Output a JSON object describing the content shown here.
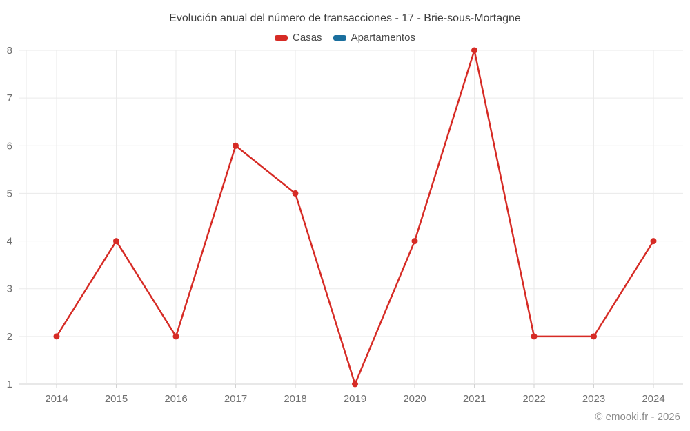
{
  "chart": {
    "title": "Evolución anual del número de transacciones - 17 - Brie-sous-Mortagne",
    "legend": [
      {
        "label": "Casas",
        "color": "#d62b25"
      },
      {
        "label": "Apartamentos",
        "color": "#1a6f9e"
      }
    ]
  },
  "chart_data": {
    "type": "line",
    "title": "Evolución anual del número de transacciones - 17 - Brie-sous-Mortagne",
    "x": [
      2014,
      2015,
      2016,
      2017,
      2018,
      2019,
      2020,
      2021,
      2022,
      2023,
      2024
    ],
    "series": [
      {
        "name": "Casas",
        "color": "#d62b25",
        "values": [
          2,
          4,
          2,
          6,
          5,
          1,
          4,
          8,
          2,
          2,
          4
        ]
      },
      {
        "name": "Apartamentos",
        "color": "#1a6f9e",
        "values": []
      }
    ],
    "xlabel": "",
    "ylabel": "",
    "ylim": [
      1,
      8
    ],
    "yticks": [
      1,
      2,
      3,
      4,
      5,
      6,
      7,
      8
    ],
    "grid": true,
    "legend_position": "top",
    "marker": "circle"
  },
  "footer": {
    "text": "© emooki.fr - 2026"
  },
  "colors": {
    "grid": "#eaeaea",
    "axis": "#d2d2d2",
    "axis_text": "#6f6f6f",
    "title_text": "#3d3d3d",
    "footer_text": "#8b8b8b"
  }
}
